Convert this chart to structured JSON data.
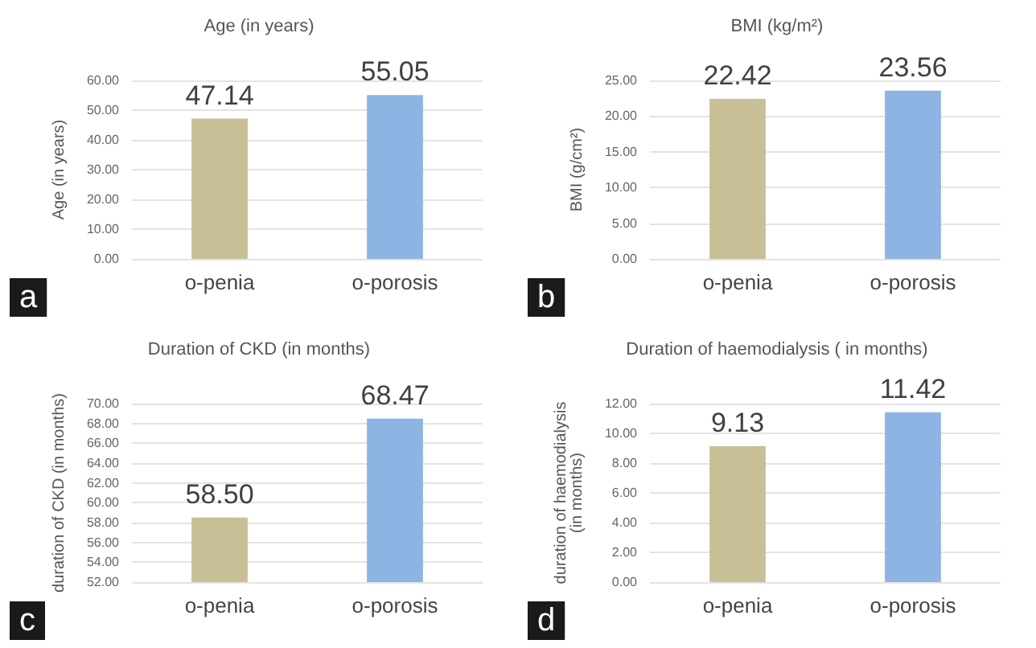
{
  "chart_data": [
    {
      "type": "bar",
      "title": "Age (in years)",
      "ylabel": "Age (in years)",
      "categories": [
        "o-penia",
        "o-porosis"
      ],
      "values": [
        47.14,
        55.05
      ],
      "colors": [
        "#c8bf96",
        "#8db4e2"
      ],
      "value_labels": [
        "47.14",
        "55.05"
      ],
      "ylim": [
        0,
        60
      ],
      "yticks": [
        {
          "value": 0,
          "label": "0.00"
        },
        {
          "value": 10,
          "label": "10.00"
        },
        {
          "value": 20,
          "label": "20.00"
        },
        {
          "value": 30,
          "label": "30.00"
        },
        {
          "value": 40,
          "label": "40.00"
        },
        {
          "value": 50,
          "label": "50.00"
        },
        {
          "value": 60,
          "label": "60.00"
        }
      ],
      "grid": "y",
      "annotations": [
        "a"
      ]
    },
    {
      "type": "bar",
      "title": "BMI (kg/m²)",
      "ylabel": "BMI (g/cm²)",
      "categories": [
        "o-penia",
        "o-porosis"
      ],
      "values": [
        22.42,
        23.56
      ],
      "colors": [
        "#c8bf96",
        "#8db4e2"
      ],
      "value_labels": [
        "22.42",
        "23.56"
      ],
      "ylim": [
        0,
        25
      ],
      "yticks": [
        {
          "value": 0,
          "label": "0.00"
        },
        {
          "value": 5,
          "label": "5.00"
        },
        {
          "value": 10,
          "label": "10.00"
        },
        {
          "value": 15,
          "label": "15.00"
        },
        {
          "value": 20,
          "label": "20.00"
        },
        {
          "value": 25,
          "label": "25.00"
        }
      ],
      "grid": "y",
      "annotations": [
        "b"
      ]
    },
    {
      "type": "bar",
      "title": "Duration of CKD (in months)",
      "ylabel": "duration of CKD (in months)",
      "categories": [
        "o-penia",
        "o-porosis"
      ],
      "values": [
        58.5,
        68.47
      ],
      "colors": [
        "#c8bf96",
        "#8db4e2"
      ],
      "value_labels": [
        "58.50",
        "68.47"
      ],
      "ylim": [
        52,
        70
      ],
      "yticks": [
        {
          "value": 52,
          "label": "52.00"
        },
        {
          "value": 54,
          "label": "54.00"
        },
        {
          "value": 56,
          "label": "56.00"
        },
        {
          "value": 58,
          "label": "58.00"
        },
        {
          "value": 60,
          "label": "60.00"
        },
        {
          "value": 62,
          "label": "62.00"
        },
        {
          "value": 64,
          "label": "64.00"
        },
        {
          "value": 66,
          "label": "66.00"
        },
        {
          "value": 68,
          "label": "68.00"
        },
        {
          "value": 70,
          "label": "70.00"
        }
      ],
      "grid": "y",
      "annotations": [
        "c"
      ]
    },
    {
      "type": "bar",
      "title": "Duration of haemodialysis ( in months)",
      "ylabel": "duration of haemodialysis (in months)",
      "categories": [
        "o-penia",
        "o-porosis"
      ],
      "values": [
        9.13,
        11.42
      ],
      "colors": [
        "#c8bf96",
        "#8db4e2"
      ],
      "value_labels": [
        "9.13",
        "11.42"
      ],
      "ylim": [
        0,
        12
      ],
      "yticks": [
        {
          "value": 0,
          "label": "0.00"
        },
        {
          "value": 2,
          "label": "2.00"
        },
        {
          "value": 4,
          "label": "4.00"
        },
        {
          "value": 6,
          "label": "6.00"
        },
        {
          "value": 8,
          "label": "8.00"
        },
        {
          "value": 10,
          "label": "10.00"
        },
        {
          "value": 12,
          "label": "12.00"
        }
      ],
      "grid": "y",
      "annotations": [
        "d"
      ]
    }
  ]
}
